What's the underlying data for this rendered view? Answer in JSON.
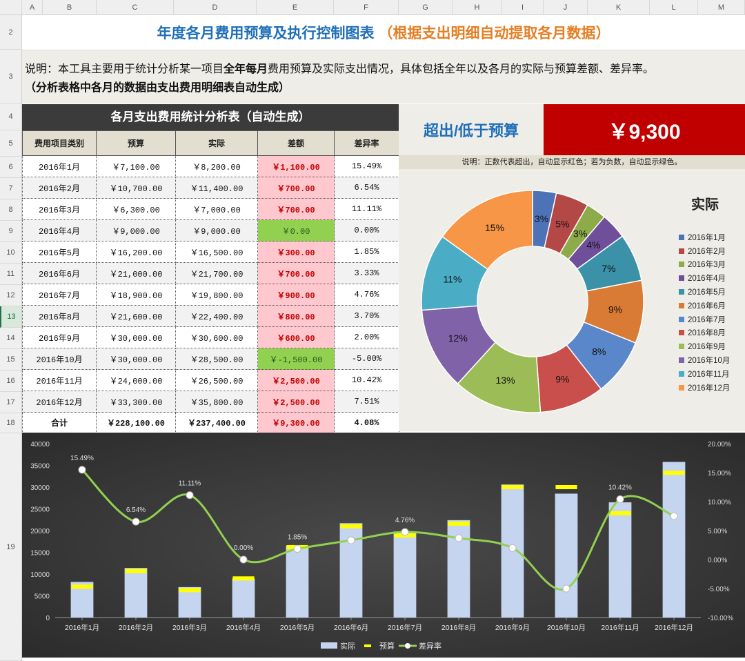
{
  "columns": [
    "A",
    "B",
    "C",
    "D",
    "E",
    "F",
    "G",
    "H",
    "I",
    "J",
    "K",
    "L",
    "M"
  ],
  "rows": [
    "2",
    "3",
    "4",
    "5",
    "6",
    "7",
    "8",
    "9",
    "10",
    "11",
    "12",
    "13",
    "14",
    "15",
    "16",
    "17",
    "18",
    "19"
  ],
  "selected_row": "13",
  "title": {
    "main": "年度各月费用预算及执行控制图表",
    "sub": "（根据支出明细自动提取各月数据）"
  },
  "description": {
    "prefix": "说明：本工具主要用于统计分析某一项目",
    "bold": "全年每月",
    "suffix": "费用预算及实际支出情况，具体包括全年以及各月的实际与预算差额、差异率。",
    "line2": "（分析表格中各月的数据由支出费用明细表自动生成）"
  },
  "table": {
    "title": "各月支出费用统计分析表（自动生成）",
    "headers": [
      "费用项目类别",
      "预算",
      "实际",
      "差额",
      "差异率"
    ],
    "rows": [
      {
        "month": "2016年1月",
        "budget": "￥7,100.00",
        "actual": "￥8,200.00",
        "diff": "￥1,100.00",
        "rate": "15.49%",
        "sign": "pos"
      },
      {
        "month": "2016年2月",
        "budget": "￥10,700.00",
        "actual": "￥11,400.00",
        "diff": "￥700.00",
        "rate": "6.54%",
        "sign": "pos"
      },
      {
        "month": "2016年3月",
        "budget": "￥6,300.00",
        "actual": "￥7,000.00",
        "diff": "￥700.00",
        "rate": "11.11%",
        "sign": "pos"
      },
      {
        "month": "2016年4月",
        "budget": "￥9,000.00",
        "actual": "￥9,000.00",
        "diff": "￥0.00",
        "rate": "0.00%",
        "sign": "neg"
      },
      {
        "month": "2016年5月",
        "budget": "￥16,200.00",
        "actual": "￥16,500.00",
        "diff": "￥300.00",
        "rate": "1.85%",
        "sign": "pos"
      },
      {
        "month": "2016年6月",
        "budget": "￥21,000.00",
        "actual": "￥21,700.00",
        "diff": "￥700.00",
        "rate": "3.33%",
        "sign": "pos"
      },
      {
        "month": "2016年7月",
        "budget": "￥18,900.00",
        "actual": "￥19,800.00",
        "diff": "￥900.00",
        "rate": "4.76%",
        "sign": "pos"
      },
      {
        "month": "2016年8月",
        "budget": "￥21,600.00",
        "actual": "￥22,400.00",
        "diff": "￥800.00",
        "rate": "3.70%",
        "sign": "pos"
      },
      {
        "month": "2016年9月",
        "budget": "￥30,000.00",
        "actual": "￥30,600.00",
        "diff": "￥600.00",
        "rate": "2.00%",
        "sign": "pos"
      },
      {
        "month": "2016年10月",
        "budget": "￥30,000.00",
        "actual": "￥28,500.00",
        "diff": "￥-1,500.00",
        "rate": "-5.00%",
        "sign": "neg"
      },
      {
        "month": "2016年11月",
        "budget": "￥24,000.00",
        "actual": "￥26,500.00",
        "diff": "￥2,500.00",
        "rate": "10.42%",
        "sign": "pos"
      },
      {
        "month": "2016年12月",
        "budget": "￥33,300.00",
        "actual": "￥35,800.00",
        "diff": "￥2,500.00",
        "rate": "7.51%",
        "sign": "pos"
      }
    ],
    "total": {
      "month": "合计",
      "budget": "￥228,100.00",
      "actual": "￥237,400.00",
      "diff": "￥9,300.00",
      "rate": "4.08%"
    }
  },
  "summary": {
    "label": "超出/低于预算",
    "value": "￥9,300",
    "note": "说明：正数代表超出，自动显示红色；若为负数，自动显示绿色。"
  },
  "colors": {
    "accent_blue": "#1f6fb7",
    "accent_orange": "#e67e22",
    "over_red": "#c00000",
    "diff_pos_bg": "#ffc7ce",
    "diff_neg_bg": "#92d050"
  },
  "chart_data": [
    {
      "type": "pie",
      "subtype": "doughnut",
      "title": "实际",
      "legend_position": "right",
      "categories": [
        "2016年1月",
        "2016年2月",
        "2016年3月",
        "2016年4月",
        "2016年5月",
        "2016年6月",
        "2016年7月",
        "2016年8月",
        "2016年9月",
        "2016年10月",
        "2016年11月",
        "2016年12月"
      ],
      "values": [
        8200,
        11400,
        7000,
        9000,
        16500,
        21700,
        19800,
        22400,
        30600,
        28500,
        26500,
        35800
      ],
      "labels": [
        "3%",
        "5%",
        "3%",
        "4%",
        "7%",
        "9%",
        "8%",
        "9%",
        "13%",
        "12%",
        "11%",
        "15%"
      ],
      "colors": [
        "#4e72b8",
        "#b44846",
        "#8eab4a",
        "#6f4e9a",
        "#3a91a8",
        "#d97b35",
        "#5a87c9",
        "#c94f4c",
        "#9cbc58",
        "#8062a8",
        "#4aacc5",
        "#f79646"
      ]
    },
    {
      "type": "bar",
      "subtype": "combo bar + budget markers + smooth line",
      "categories": [
        "2016年1月",
        "2016年2月",
        "2016年3月",
        "2016年4月",
        "2016年5月",
        "2016年6月",
        "2016年7月",
        "2016年8月",
        "2016年9月",
        "2016年10月",
        "2016年11月",
        "2016年12月"
      ],
      "series": [
        {
          "name": "实际",
          "type": "bar",
          "axis": "left",
          "values": [
            8200,
            11400,
            7000,
            9000,
            16500,
            21700,
            19800,
            22400,
            30600,
            28500,
            26500,
            35800
          ]
        },
        {
          "name": "预算",
          "type": "marker",
          "axis": "left",
          "values": [
            7100,
            10700,
            6300,
            9000,
            16200,
            21000,
            18900,
            21600,
            30000,
            30000,
            24000,
            33300
          ]
        },
        {
          "name": "差异率",
          "type": "line",
          "axis": "right",
          "values": [
            15.49,
            6.54,
            11.11,
            0.0,
            1.85,
            3.33,
            4.76,
            3.7,
            2.0,
            -5.0,
            10.42,
            7.51
          ]
        }
      ],
      "rate_point_labels": [
        "15.49%",
        "6.54%",
        "11.11%",
        "0.00%",
        "1.85%",
        "",
        "4.76%",
        "",
        "",
        "",
        "10.42%",
        ""
      ],
      "y_left": {
        "ticks": [
          "0",
          "5000",
          "10000",
          "15000",
          "20000",
          "25000",
          "30000",
          "35000",
          "40000"
        ],
        "range": [
          0,
          40000
        ]
      },
      "y_right": {
        "ticks": [
          "-10.00%",
          "-5.00%",
          "0.00%",
          "5.00%",
          "10.00%",
          "15.00%",
          "20.00%"
        ],
        "range": [
          -10,
          20
        ]
      },
      "legend_position": "bottom",
      "legend": [
        "实际",
        "预算",
        "差异率"
      ],
      "colors": {
        "bar": "#c5d5ef",
        "marker": "#ffff00",
        "line": "#92d050"
      }
    }
  ]
}
